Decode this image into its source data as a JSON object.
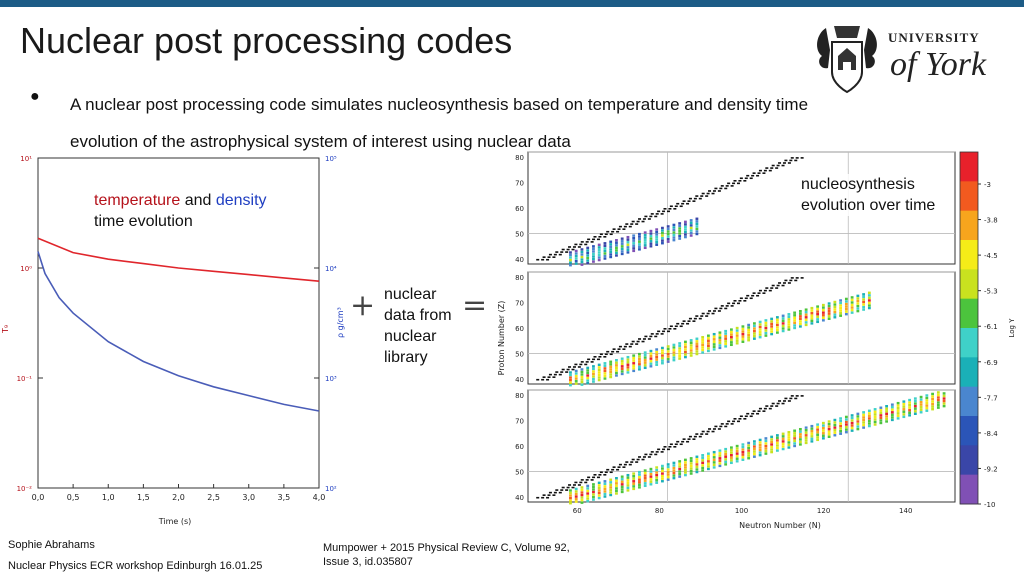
{
  "slide": {
    "title": "Nuclear post processing codes",
    "bullet_marker": "●",
    "bullet_text": "A nuclear post processing code simulates nucleosynthesis based on temperature and density time evolution of the astrophysical system of interest using nuclear data",
    "logo": {
      "line1": "UNIVERSITY",
      "line2": "of York"
    },
    "annotation_left": {
      "word_temperature": "temperature",
      "word_and": " and ",
      "word_density": "density",
      "line2": "time evolution"
    },
    "annotation_right": {
      "line1": "nucleosynthesis",
      "line2": "evolution over time"
    },
    "plus_symbol": "+",
    "equals_symbol": "=",
    "middle_text": [
      "nuclear",
      "data from",
      "nuclear",
      "library"
    ],
    "footer": {
      "author": "Sophie Abrahams",
      "event": "Nuclear Physics ECR workshop Edinburgh 16.01.25",
      "citation_line1": "Mumpower + 2015 Physical Review C, Volume 92,",
      "citation_line2": "Issue 3, id.035807"
    },
    "colors": {
      "topbar": "#1d5c86",
      "temperature": "#b5121b",
      "density": "#1f3ec1"
    }
  },
  "chart_data": [
    {
      "type": "line",
      "xlabel": "Time (s)",
      "ylabel_left": "T₉",
      "ylabel_right": "ρ g/cm³",
      "x_ticks": [
        "0,0",
        "0,5",
        "1,0",
        "1,5",
        "2,0",
        "2,5",
        "3,0",
        "3,5",
        "4,0"
      ],
      "xlim": [
        0,
        4
      ],
      "y_left_ticks": [
        "10¹",
        "10⁰",
        "10⁻¹",
        "10⁻²"
      ],
      "y_right_ticks": [
        "10⁵",
        "10⁴",
        "10³",
        "10²"
      ],
      "series": [
        {
          "color": "#e0262c",
          "x": [
            0,
            0.5,
            1,
            1.5,
            2,
            2.5,
            3,
            3.5,
            4
          ],
          "y_log_left": [
            0.27,
            0.14,
            0.08,
            0.04,
            0.0,
            -0.03,
            -0.06,
            -0.09,
            -0.12
          ]
        },
        {
          "color": "#4a5db8",
          "x": [
            0,
            0.1,
            0.3,
            0.5,
            1,
            1.5,
            2,
            2.5,
            3,
            3.5,
            4
          ],
          "y_log_left": [
            0.15,
            -0.05,
            -0.27,
            -0.41,
            -0.67,
            -0.85,
            -0.98,
            -1.08,
            -1.16,
            -1.24,
            -1.3
          ]
        }
      ]
    },
    {
      "type": "heatmap",
      "xlabel": "Neutron Number (N)",
      "ylabel": "Proton Number (Z)",
      "x_ticks": [
        "60",
        "80",
        "100",
        "120",
        "140"
      ],
      "y_ticks": [
        "40",
        "50",
        "60",
        "70",
        "80"
      ],
      "xlim": [
        48,
        152
      ],
      "ylim": [
        38,
        82
      ],
      "colorbar": {
        "label": "Log Y",
        "ticks": [
          "-3",
          "-3.8",
          "-4.5",
          "-5.3",
          "-6.1",
          "-6.9",
          "-7.7",
          "-8.4",
          "-9.2",
          "-10"
        ],
        "colors": [
          "#e8212b",
          "#f25a1f",
          "#f7a51d",
          "#f5ec18",
          "#c9e21f",
          "#4cc43d",
          "#3fd1c8",
          "#1ab0b7",
          "#4a86cf",
          "#2b55b8",
          "#3a46a8",
          "#8050b5"
        ]
      }
    }
  ]
}
